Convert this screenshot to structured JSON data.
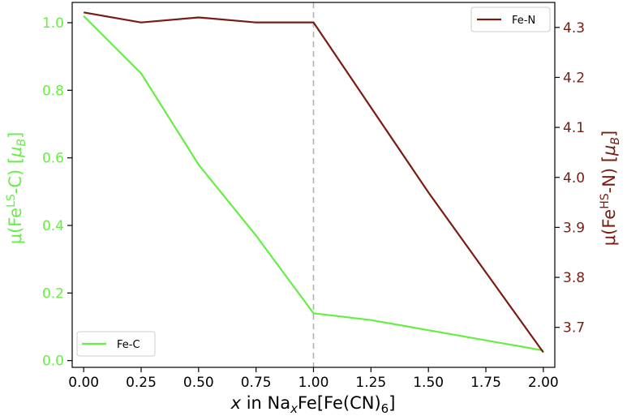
{
  "chart_data": {
    "type": "line",
    "title": "",
    "x": [
      0.0,
      0.25,
      0.5,
      0.75,
      1.0,
      1.25,
      1.5,
      1.75,
      2.0
    ],
    "xlim": [
      -0.05,
      2.05
    ],
    "xticks": [
      "0.00",
      "0.25",
      "0.50",
      "0.75",
      "1.00",
      "1.25",
      "1.50",
      "1.75",
      "2.00"
    ],
    "xlabel": {
      "italic": "x",
      "text": " in Na",
      "sub": "x",
      "text2": "Fe[Fe(CN)",
      "sub2": "6",
      "text3": "]"
    },
    "vline_x": 1.0,
    "grid": false,
    "left_axis": {
      "color": "#66ee44",
      "ylim": [
        -0.02,
        1.06
      ],
      "ticks": [
        "0.0",
        "0.2",
        "0.4",
        "0.6",
        "0.8",
        "1.0"
      ],
      "label": {
        "pre": "μ(Fe",
        "sup": "LS",
        "mid": "-C) [",
        "unit": "μ",
        "unit_sub": "B",
        "post": "]"
      }
    },
    "right_axis": {
      "color": "#7a1c12",
      "ylim": [
        3.62,
        4.35
      ],
      "ticks": [
        "3.7",
        "3.8",
        "3.9",
        "4.0",
        "4.1",
        "4.2",
        "4.3"
      ],
      "label": {
        "pre": "μ(Fe",
        "sup": "HS",
        "mid": "-N) [",
        "unit": "μ",
        "unit_sub": "B",
        "post": "]"
      }
    },
    "series": [
      {
        "name": "Fe-C",
        "axis": "left",
        "color": "#66ee44",
        "values": [
          1.02,
          0.85,
          0.58,
          0.37,
          0.14,
          0.12,
          0.09,
          0.06,
          0.03
        ]
      },
      {
        "name": "Fe-N",
        "axis": "right",
        "color": "#7a1c12",
        "values": [
          4.33,
          4.31,
          4.32,
          4.31,
          4.31,
          4.14,
          3.97,
          3.81,
          3.65
        ]
      }
    ],
    "legends": [
      {
        "series": "Fe-C",
        "placement": "lower-left"
      },
      {
        "series": "Fe-N",
        "placement": "upper-right"
      }
    ]
  }
}
